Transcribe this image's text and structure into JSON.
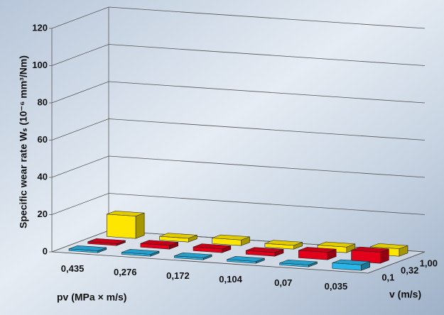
{
  "chart_data": {
    "type": "bar3d",
    "y_label": "Specific wear rate Wₛ (10⁻⁶ mm³/Nm)",
    "x_label": "pv (MPa × m/s)",
    "z_label": "v (m/s)",
    "categories": [
      "0,435",
      "0,276",
      "0,172",
      "0,104",
      "0,07",
      "0,035"
    ],
    "series": [
      {
        "name": "0,1",
        "color": "#29b5e8",
        "values": [
          1,
          1,
          1,
          1,
          1,
          3
        ]
      },
      {
        "name": "0,32",
        "color": "#e3001b",
        "values": [
          1,
          2,
          2,
          2,
          4,
          6
        ]
      },
      {
        "name": "1,00",
        "color": "#ffe600",
        "values": [
          12,
          2,
          3,
          2,
          3,
          4
        ]
      }
    ],
    "ylim": [
      0,
      120
    ],
    "yticks": [
      0,
      20,
      40,
      60,
      80,
      100,
      120
    ],
    "grid": true
  }
}
